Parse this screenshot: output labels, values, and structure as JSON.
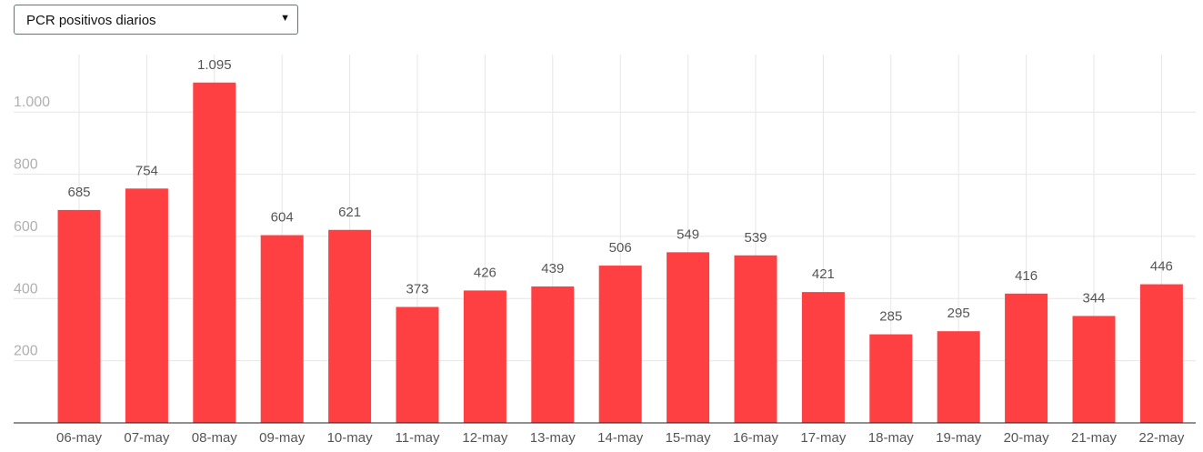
{
  "selector": {
    "selected_label": "PCR positivos diarios",
    "arrow_glyph": "▼"
  },
  "chart_data": {
    "type": "bar",
    "categories": [
      "06-may",
      "07-may",
      "08-may",
      "09-may",
      "10-may",
      "11-may",
      "12-may",
      "13-may",
      "14-may",
      "15-may",
      "16-may",
      "17-may",
      "18-may",
      "19-may",
      "20-may",
      "21-may",
      "22-may"
    ],
    "values": [
      685,
      754,
      1095,
      604,
      621,
      373,
      426,
      439,
      506,
      549,
      539,
      421,
      285,
      295,
      416,
      344,
      446
    ],
    "data_labels": [
      "685",
      "754",
      "1.095",
      "604",
      "621",
      "373",
      "426",
      "439",
      "506",
      "549",
      "539",
      "421",
      "285",
      "295",
      "416",
      "344",
      "446"
    ],
    "y_ticks": [
      200,
      400,
      600,
      800,
      1000
    ],
    "y_tick_labels": [
      "200",
      "400",
      "600",
      "800",
      "1.000"
    ],
    "ylim": [
      0,
      1185
    ],
    "bar_color": "#ff4043",
    "grid": true,
    "title": "",
    "xlabel": "",
    "ylabel": ""
  }
}
